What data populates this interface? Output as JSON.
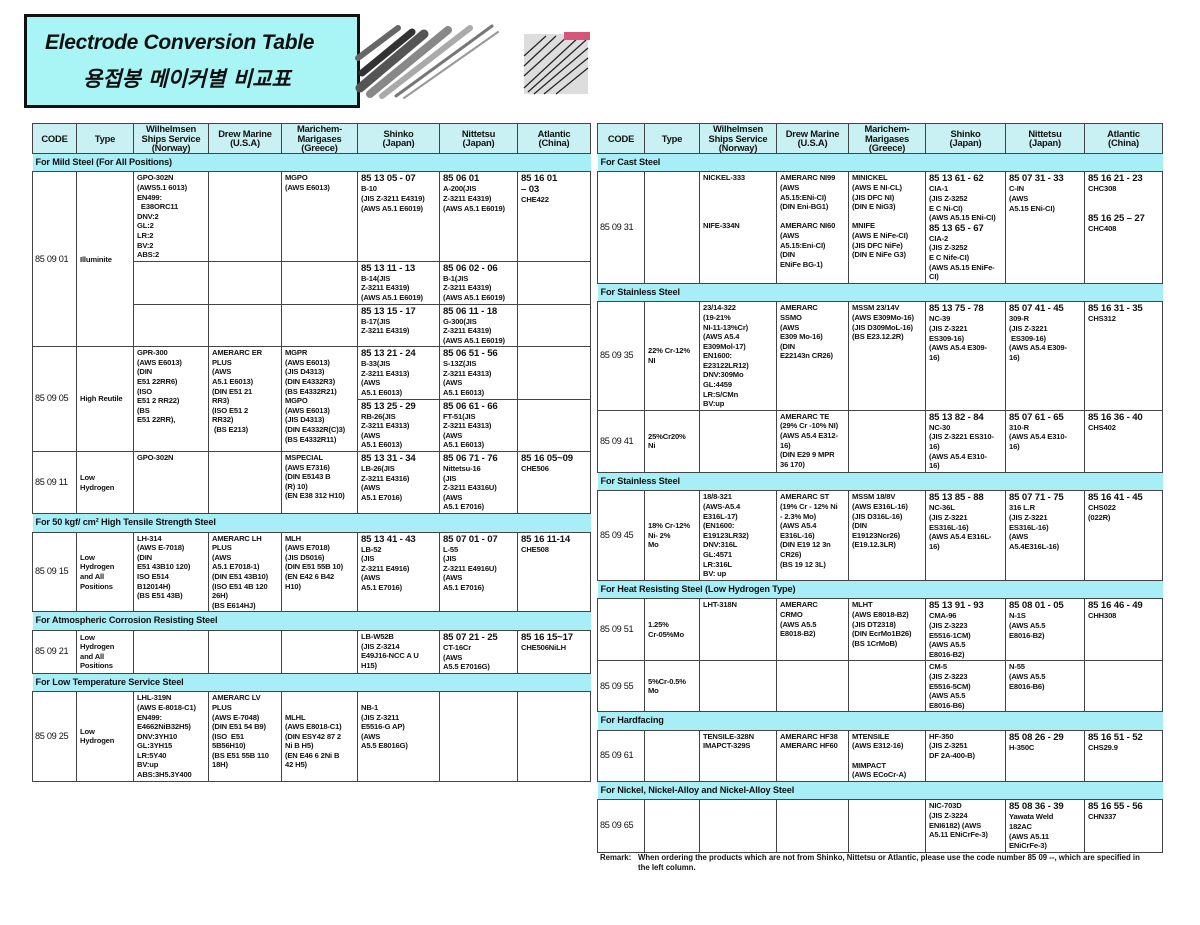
{
  "title": {
    "english": "Electrode Conversion Table",
    "korean": "용접봉 메이커별 비교표"
  },
  "colors": {
    "title_bg": "#a9f5f5",
    "section_bg": "#a8eef6",
    "header_bg": "#c9f1f3"
  },
  "header": [
    [
      "CODE"
    ],
    [
      "Type"
    ],
    [
      "Wilhelmsen",
      "Ships Service",
      "(Norway)"
    ],
    [
      "Drew Marine",
      "(U.S.A)"
    ],
    [
      "Marichem-",
      "Marigases",
      "(Greece)"
    ],
    [
      "Shinko",
      "(Japan)"
    ],
    [
      "Nittetsu",
      "(Japan)"
    ],
    [
      "Atlantic",
      "(China)"
    ]
  ],
  "left_table": [
    {
      "title": "For Mild Steel (For All Positions)",
      "groups": [
        {
          "code": "85 09 01",
          "type": "Illuminite",
          "subrows": [
            [
              "GPO-302N\n(AWS5.1 6013)\nEN499:\n  E38ORC11\nDNV:2\nGL:2\nLR:2\nBV:2\nABS:2",
              "",
              "MGPO\n(AWS E6013)",
              "85 13 05 - 07\nB-10\n(JIS Z-3211 E4319)\n(AWS A5.1 E6019)",
              "85 06 01\nA-200(JIS\nZ-3211 E4319)\n(AWS A5.1 E6019)",
              "85 16 01\n– 03\nCHE422"
            ],
            [
              "",
              "",
              "",
              "85 13 11 - 13\nB-14(JIS\nZ-3211 E4319)\n(AWS A5.1 E6019)",
              "85 06 02 - 06\nB-1(JIS\nZ-3211 E4319)\n(AWS A5.1 E6019)",
              ""
            ],
            [
              "",
              "",
              "",
              "85 13 15 - 17\nB-17(JIS\nZ-3211 E4319)",
              "85 06 11 - 18\nG-300(JIS\nZ-3211 E4319)\n(AWS A5.1 E6019)",
              ""
            ]
          ]
        },
        {
          "code": "85 09 05",
          "type": "High Reutile",
          "subrows": [
            [
              "GPR-300\n(AWS E6013)\n(DIN\nE51 22RR6)\n(ISO\nE51 2 RR22)\n(BS\nE51 22RR),",
              "AMERARC ER\nPLUS\n(AWS\nA5.1 E6013)\n(DIN E51 21\nRR3)\n(ISO E51 2\nRR32)\n (BS E213)",
              "MGPR\n(AWS E6013)\n(JIS D4313)\n(DIN E4332R3)\n(BS E4332R21)\nMGPO\n(AWS E6013)\n(JIS D4313)\n(DIN E4332R(C)3)\n(BS E4332R11)",
              "85 13 21 - 24\nB-33(JIS\nZ-3211 E4313)\n(AWS\nA5.1 E6013)",
              "85 06 51 - 56\nS-13Z(JIS\nZ-3211 E4313)\n(AWS\nA5.1 E6013)",
              ""
            ],
            [
              null,
              null,
              null,
              "85 13 25 - 29\nRB-26(JIS\nZ-3211 E4313)\n(AWS\nA5.1 E6013)",
              "85 06 61 - 66\nFT-51(JIS\nZ-3211 E4313)\n(AWS\nA5.1 E6013)",
              ""
            ]
          ]
        },
        {
          "code": "85 09 11",
          "type": "Low\nHydrogen",
          "subrows": [
            [
              "GPO-302N",
              "",
              "MSPECIAL\n(AWS E7316)\n(DIN E5143 B\n(R) 10)\n(EN E38 312 H10)",
              "85 13 31 - 34\nLB-26(JIS\nZ-3211 E4316)\n(AWS\nA5.1 E7016)",
              "85 06 71 - 76\nNittetsu-16\n(JIS\nZ-3211 E4316U)\n(AWS\nA5.1 E7016)",
              "85 16 05~09\nCHE506"
            ]
          ]
        }
      ]
    },
    {
      "title": "For 50 kgf/ cm² High Tensile Strength Steel",
      "groups": [
        {
          "code": "85 09 15",
          "type": "Low\nHydrogen\nand All\nPositions",
          "subrows": [
            [
              "LH-314\n(AWS E-7018)\n(DIN\nE51 43B10 120)\nISO E514\nB12014H)\n(BS E51 43B)",
              "AMERARC LH\nPLUS\n(AWS\nA5.1 E7018-1)\n(DIN E51 43B10)\n(ISO E51 4B 120\n26H)\n(BS E614HJ)",
              "MLH\n(AWS E7018)\n(JIS D5016)\n(DIN E51 55B 10)\n(EN E42 6 B42\nH10)",
              "85 13 41 - 43\nLB-52\n(JIS\nZ-3211 E4916)\n(AWS\nA5.1 E7016)",
              "85 07 01 - 07\nL-55\n(JIS\nZ-3211 E4916U)\n(AWS\nA5.1 E7016)",
              "85 16 11-14\nCHE508"
            ]
          ]
        }
      ]
    },
    {
      "title": "For Atmospheric Corrosion Resisting Steel",
      "groups": [
        {
          "code": "85 09 21",
          "type": "Low\nHydrogen\nand All\nPositions",
          "subrows": [
            [
              "",
              "",
              "",
              "LB-W52B\n(JIS Z-3214\nE49J16-NCC A U\nH15)",
              "85 07 21 - 25\nCT-16Cr\n(AWS\nA5.5 E7016G)",
              "85 16 15~17\nCHE506NiLH"
            ]
          ]
        }
      ]
    },
    {
      "title": "For Low Temperature Service Steel",
      "groups": [
        {
          "code": "85 09 25",
          "type": "Low\nHydrogen",
          "subrows": [
            [
              "LHL-319N\n(AWS E-8018-C1)\nEN499:\nE4662NiB32H5)\nDNV:3YH10\nGL:3YH15\nLR:5Y40\nBV:up\nABS:3H5.3Y400",
              "AMERARC LV\nPLUS\n(AWS E-7048)\n(DIN E51 54 B9)\n(ISO  E51\n5B56H10)\n(BS E51 55B 110\n18H)",
              "\n\nMLHL\n(AWS E8018-C1)\n(DIN ESY42 87 2\nNi B H5)\n(EN E46 6 2Ni B\n42 H5)",
              "\nNB-1\n(JIS Z-3211\nE5516-G AP)\n(AWS\nA5.5 E8016G)",
              "",
              ""
            ]
          ]
        }
      ]
    }
  ],
  "right_table": [
    {
      "title": "For Cast Steel",
      "groups": [
        {
          "code": "85 09 31",
          "type": "",
          "subrows": [
            [
              "NICKEL-333\n\n\n\n\nNIFE-334N",
              "AMERARC NI99\n(AWS\nA5.15:ENi-CI)\n(DIN Eni-BG1)\n\nAMERARC NI60\n(AWS\nA5.15:Eni-CI)\n(DIN\nENiFe BG-1)",
              "MINICKEL\n(AWS E NI-CL)\n(JIS DFC NI)\n(DIN E NiG3)\n\nMNIFE\n(AWS E NiFe-CI)\n(JIS DFC NiFe)\n(DIN E NiFe G3)",
              "85 13 61 - 62\nCIA-1\n(JIS Z-3252\nE C Ni-CI)\n(AWS A5.15 ENi-CI)\n85 13 65 - 67\nCIA-2\n(JIS Z-3252\nE C Nife-CI)\n(AWS A5.15 ENiFe-\nCI)",
              "85 07 31 - 33\nC-IN\n(AWS\nA5.15 ENi-CI)",
              "85 16 21 - 23\nCHC308\n\n\n85 16 25 – 27\nCHC408"
            ]
          ]
        }
      ]
    },
    {
      "title": "For Stainless Steel",
      "groups": [
        {
          "code": "85 09 35",
          "type": "22% Cr-12%\nNI",
          "subrows": [
            [
              "23/14-322\n(19-21%\nNI-11-13%Cr)\n(AWS A5.4\nE309Mol-17)\nEN1600:\nE23122LR12)\nDNV:309Mo\nGL:4459\nLR:S/CMn\nBV:up",
              "AMERARC\nSSMO\n(AWS\nE309 Mo-16)\n(DIN\nE22143n CR26)",
              "MSSM 23/14V\n(AWS E309Mo-16)\n(JIS D309MoL-16)\n(BS E23.12.2R)",
              "85 13 75 - 78\nNC-39\n(JIS Z-3221\nES309-16)\n(AWS A5.4 E309-\n16)",
              "85 07 41 - 45\n309-R\n(JIS Z-3221\n ES309-16)\n(AWS A5.4 E309-\n16)",
              "85 16 31 - 35\nCHS312"
            ]
          ]
        },
        {
          "code": "85 09 41",
          "type": "25%Cr20%\nNi",
          "subrows": [
            [
              "",
              "AMERARC TE\n(29% Cr -10% NI)\n(AWS A5.4 E312-\n16)\n(DIN E29 9 MPR\n36 170)",
              "",
              "85 13 82 - 84\nNC-30\n(JIS Z-3221 ES310-\n16)\n(AWS A5.4 E310-\n16)",
              "85 07 61 - 65\n310-R\n(AWS A5.4 E310-\n16)",
              "85 16 36 - 40\nCHS402"
            ]
          ]
        }
      ]
    },
    {
      "title": "For Stainless Steel",
      "groups": [
        {
          "code": "85 09 45",
          "type": "18% Cr-12%\nNi- 2%\nMo",
          "subrows": [
            [
              "18/8-321\n(AWS-A5.4\nE316L-17)\n(EN1600:\nE19123LR32)\nDNV:316L\nGL:4571\nLR:316L\nBV: up",
              "AMERARC ST\n(19% Cr - 12% Ni\n- 2.3% Mo)\n(AWS A5.4\nE316L-16)\n(DIN E19 12 3n\nCR26)\n(BS 19 12 3L)",
              "MSSM 18/8V\n(AWS E316L-16)\n(JIS D316L-16)\n(DIN\nE19123Ncr26)\n(E19.12.3LR)",
              "85 13 85 - 88\nNC-36L\n(JIS Z-3221\nES316L-16)\n(AWS A5.4 E316L-\n16)",
              "85 07 71 - 75\n316 L.R\n(JIS Z-3221\nES316L-16)\n(AWS\nA5.4E316L-16)",
              "85 16 41 - 45\nCHS022\n(022R)"
            ]
          ]
        }
      ]
    },
    {
      "title": "For Heat Resisting Steel (Low Hydrogen Type)",
      "groups": [
        {
          "code": "85 09 51",
          "type": "1.25%\nCr-05%Mo",
          "subrows": [
            [
              "LHT-318N",
              "AMERARC\nCRMO\n(AWS A5.5\nE8018-B2)",
              "MLHT\n(AWS E8018-B2)\n(JIS DT2318)\n(DIN EcrMo1B26)\n(BS 1CrMoB)",
              "85 13 91 - 93\nCMA-96\n(JIS Z-3223\nE5516-1CM)\n(AWS A5.5\nE8016-B2)",
              "85 08 01 - 05\nN-1S\n(AWS A5.5\nE8016-B2)",
              "85 16 46 - 49\nCHH308"
            ]
          ]
        },
        {
          "code": "85 09 55",
          "type": "5%Cr-0.5%\nMo",
          "subrows": [
            [
              "",
              "",
              "",
              "CM-5\n(JIS Z-3223\nE5516-5CM)\n(AWS A5.5\nE8016-B6)",
              "N-55\n(AWS A5.5\nE8016-B6)",
              ""
            ]
          ]
        }
      ]
    },
    {
      "title": "For Hardfacing",
      "groups": [
        {
          "code": "85 09 61",
          "type": "",
          "subrows": [
            [
              "TENSILE-328N\nIMAPCT-329S",
              "AMERARC HF38\nAMERARC HF60",
              "MTENSILE\n(AWS E312-16)\n\nMIMPACT\n(AWS ECoCr-A)",
              "HF-350\n(JIS Z-3251\nDF 2A-400-B)",
              "85 08 26 - 29\nH-350C",
              "85 16 51 - 52\nCHS29.9"
            ]
          ]
        }
      ]
    },
    {
      "title": "For Nickel, Nickel-Alloy and Nickel-Alloy Steel",
      "groups": [
        {
          "code": "85 09 65",
          "type": "",
          "subrows": [
            [
              "",
              "",
              "",
              "NIC-703D\n(JIS Z-3224\nENI6182) (AWS\nA5.11 ENiCrFe-3)",
              "85 08 36 - 39\nYawata Weld\n182AC\n(AWS A5.11\nENiCrFe-3)",
              "85 16 55 - 56\nCHN337"
            ]
          ]
        }
      ]
    }
  ],
  "remark": {
    "label": "Remark:",
    "text": "When ordering the products which are not from Shinko, Nittetsu or Atlantic, please use the code number 85 09 --, which are specified in the left column."
  }
}
